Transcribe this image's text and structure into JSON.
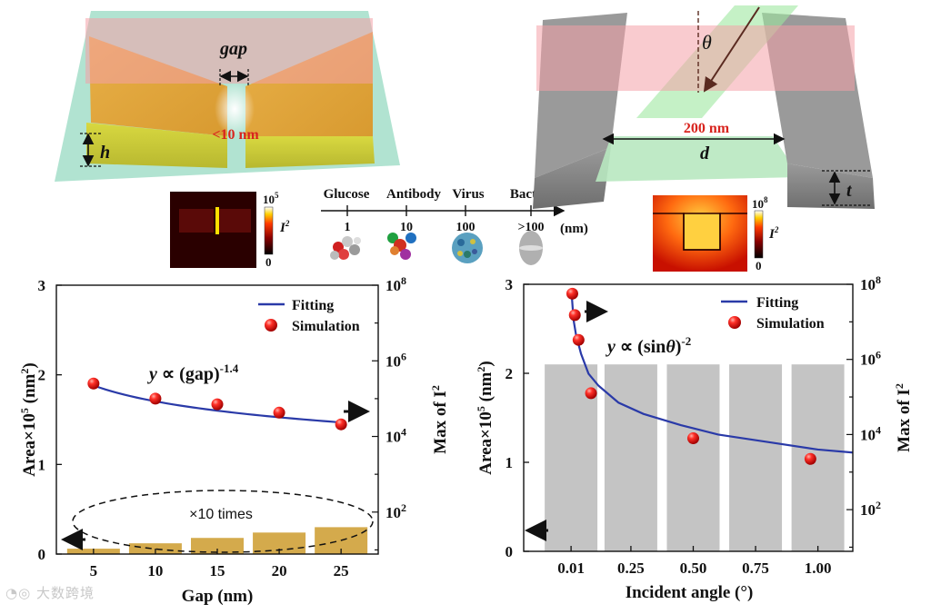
{
  "illustration": {
    "left": {
      "gap_label": "gap",
      "size_label": "<10 nm",
      "height_label": "h",
      "colorbar_top": "10",
      "colorbar_top_exp": "5",
      "colorbar_bottom": "0",
      "colorbar_symbol": "I",
      "colorbar_symbol_exp": "2"
    },
    "right": {
      "angle_label": "θ",
      "width_value": "200 nm",
      "width_label": "d",
      "thickness_label": "t",
      "colorbar_top": "10",
      "colorbar_top_exp": "8",
      "colorbar_bottom": "0",
      "colorbar_symbol": "I",
      "colorbar_symbol_exp": "2"
    },
    "scale_axis": {
      "unit": "(nm)",
      "items": [
        {
          "name": "Glucose",
          "size": "1"
        },
        {
          "name": "Antibody",
          "size": "10"
        },
        {
          "name": "Virus",
          "size": "100"
        },
        {
          "name": "Bacteria",
          "size": ">100"
        }
      ]
    }
  },
  "chart_data": [
    {
      "type": "bar+line+scatter",
      "xlabel": "Gap (nm)",
      "ylabel": "Area×10",
      "ylabel_exp": "5",
      "ylabel_unit": " (nm",
      "ylabel_unit_exp": "2",
      "ylabel_close": ")",
      "y2label": "Max of I",
      "y2label_exp": "2",
      "xlim": [
        2,
        28
      ],
      "ylim": [
        0,
        3
      ],
      "y2lim_log10": [
        0.89,
        8
      ],
      "x_ticks": [
        5,
        10,
        15,
        20,
        25
      ],
      "y_ticks": [
        0,
        1,
        2,
        3
      ],
      "y2_ticks": [
        {
          "value": 2,
          "base": "10",
          "exp": "2"
        },
        {
          "value": 4,
          "base": "10",
          "exp": "4"
        },
        {
          "value": 6,
          "base": "10",
          "exp": "6"
        },
        {
          "value": 8,
          "base": "10",
          "exp": "8"
        }
      ],
      "bars": {
        "x": [
          5,
          10,
          15,
          20,
          25
        ],
        "values": [
          0.06,
          0.12,
          0.18,
          0.24,
          0.3
        ],
        "color": "#d4aa4c",
        "axis": "left"
      },
      "simulation": {
        "name": "Simulation",
        "x": [
          5,
          10,
          15,
          20,
          25
        ],
        "values_log10": [
          5.4,
          5.0,
          4.85,
          4.63,
          4.32
        ],
        "axis": "right"
      },
      "fitting": {
        "name": "Fitting",
        "exponent": -1.4,
        "anchor_x": 5,
        "anchor_log10": 5.35,
        "axis": "right"
      },
      "equation": {
        "lhs": "y",
        "mid": " ∝ (gap)",
        "exp": "-1.4"
      },
      "annotation": "×10 times",
      "legend": "top-right"
    },
    {
      "type": "bar+line+scatter",
      "xlabel": "Incident angle (°)",
      "ylabel": "Area×10",
      "ylabel_exp": "5",
      "ylabel_unit": " (nm",
      "ylabel_unit_exp": "2",
      "ylabel_close": ")",
      "y2label": "Max of I",
      "y2label_exp": "2",
      "xlim": [
        -0.18,
        1.14
      ],
      "ylim": [
        0,
        3
      ],
      "y2lim_log10": [
        0.89,
        8
      ],
      "x_ticks": [
        0.01,
        0.25,
        0.5,
        0.75,
        1.0
      ],
      "x_tick_labels": [
        "0.01",
        "0.25",
        "0.50",
        "0.75",
        "1.00"
      ],
      "y_ticks": [
        0,
        1,
        2,
        3
      ],
      "y2_ticks": [
        {
          "value": 2,
          "base": "10",
          "exp": "2"
        },
        {
          "value": 4,
          "base": "10",
          "exp": "4"
        },
        {
          "value": 6,
          "base": "10",
          "exp": "6"
        },
        {
          "value": 8,
          "base": "10",
          "exp": "8"
        }
      ],
      "bars": {
        "x": [
          0.01,
          0.25,
          0.5,
          0.75,
          1.0
        ],
        "values": [
          2.1,
          2.1,
          2.1,
          2.1,
          2.1
        ],
        "color": "#c4c4c4",
        "axis": "left"
      },
      "simulation": {
        "name": "Simulation",
        "x": [
          0.015,
          0.025,
          0.04,
          0.09,
          0.5,
          0.97
        ],
        "values_log10": [
          7.75,
          7.18,
          6.52,
          5.1,
          3.9,
          3.35
        ],
        "axis": "right"
      },
      "fitting": {
        "name": "Fitting",
        "exponent": -2,
        "points_log10": [
          [
            0.012,
            7.78
          ],
          [
            0.02,
            7.05
          ],
          [
            0.03,
            6.65
          ],
          [
            0.05,
            6.15
          ],
          [
            0.08,
            5.62
          ],
          [
            0.12,
            5.3
          ],
          [
            0.2,
            4.85
          ],
          [
            0.3,
            4.55
          ],
          [
            0.45,
            4.25
          ],
          [
            0.6,
            4.0
          ],
          [
            0.8,
            3.8
          ],
          [
            1.0,
            3.6
          ],
          [
            1.14,
            3.52
          ]
        ],
        "axis": "right"
      },
      "equation": {
        "lhs": "y",
        "mid": " ∝ (sin",
        "theta": "θ",
        "close": ")",
        "exp": "-2"
      },
      "legend": "top-right"
    }
  ],
  "watermark": "大数跨境"
}
